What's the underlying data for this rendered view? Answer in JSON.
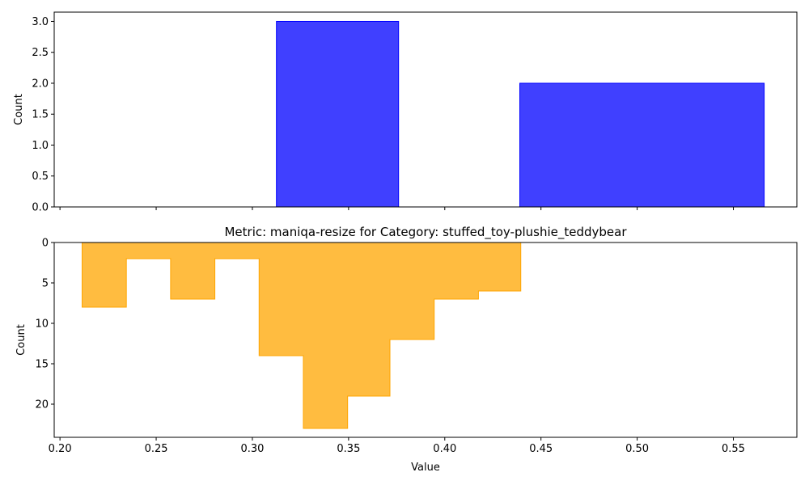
{
  "colors": {
    "top_fill": "#0000ff",
    "top_fill_opacity": 0.75,
    "top_edge": "#0000ff",
    "bottom_fill": "#ffa500",
    "bottom_fill_opacity": 0.75,
    "bottom_edge": "#ffa500"
  },
  "chart_data": [
    {
      "type": "bar",
      "histtype": "histogram",
      "title": "",
      "xlabel": "",
      "ylabel": "Count",
      "xlim": [
        0.197,
        0.583
      ],
      "ylim": [
        0,
        3.15
      ],
      "x_tick_values": [
        0.2,
        0.25,
        0.3,
        0.35,
        0.4,
        0.45,
        0.5,
        0.55
      ],
      "x_tick_labels_shown": false,
      "y_ticks": [
        "0.0",
        "0.5",
        "1.0",
        "1.5",
        "2.0",
        "2.5",
        "3.0"
      ],
      "y_tick_values": [
        0,
        0.5,
        1.0,
        1.5,
        2.0,
        2.5,
        3.0
      ],
      "bin_edges": [
        0.3125,
        0.376,
        0.439,
        0.566
      ],
      "values": [
        3,
        0,
        2
      ]
    },
    {
      "type": "bar",
      "histtype": "step-filled",
      "title": "Metric: maniqa-resize for Category: stuffed_toy-plushie_teddybear",
      "xlabel": "Value",
      "ylabel": "Count",
      "xlim": [
        0.197,
        0.583
      ],
      "ylim": [
        24.1,
        0
      ],
      "y_inverted": true,
      "x_ticks": [
        "0.20",
        "0.25",
        "0.30",
        "0.35",
        "0.40",
        "0.45",
        "0.50",
        "0.55"
      ],
      "x_tick_values": [
        0.2,
        0.25,
        0.3,
        0.35,
        0.4,
        0.45,
        0.5,
        0.55
      ],
      "y_ticks": [
        "0",
        "5",
        "10",
        "15",
        "20"
      ],
      "y_tick_values": [
        0,
        5,
        10,
        15,
        20
      ],
      "bin_edges": [
        0.2115,
        0.2345,
        0.2575,
        0.2805,
        0.3035,
        0.3265,
        0.3495,
        0.3715,
        0.3945,
        0.4175,
        0.4395
      ],
      "values": [
        8,
        2,
        7,
        2,
        14,
        23,
        19,
        12,
        7,
        6
      ]
    }
  ]
}
